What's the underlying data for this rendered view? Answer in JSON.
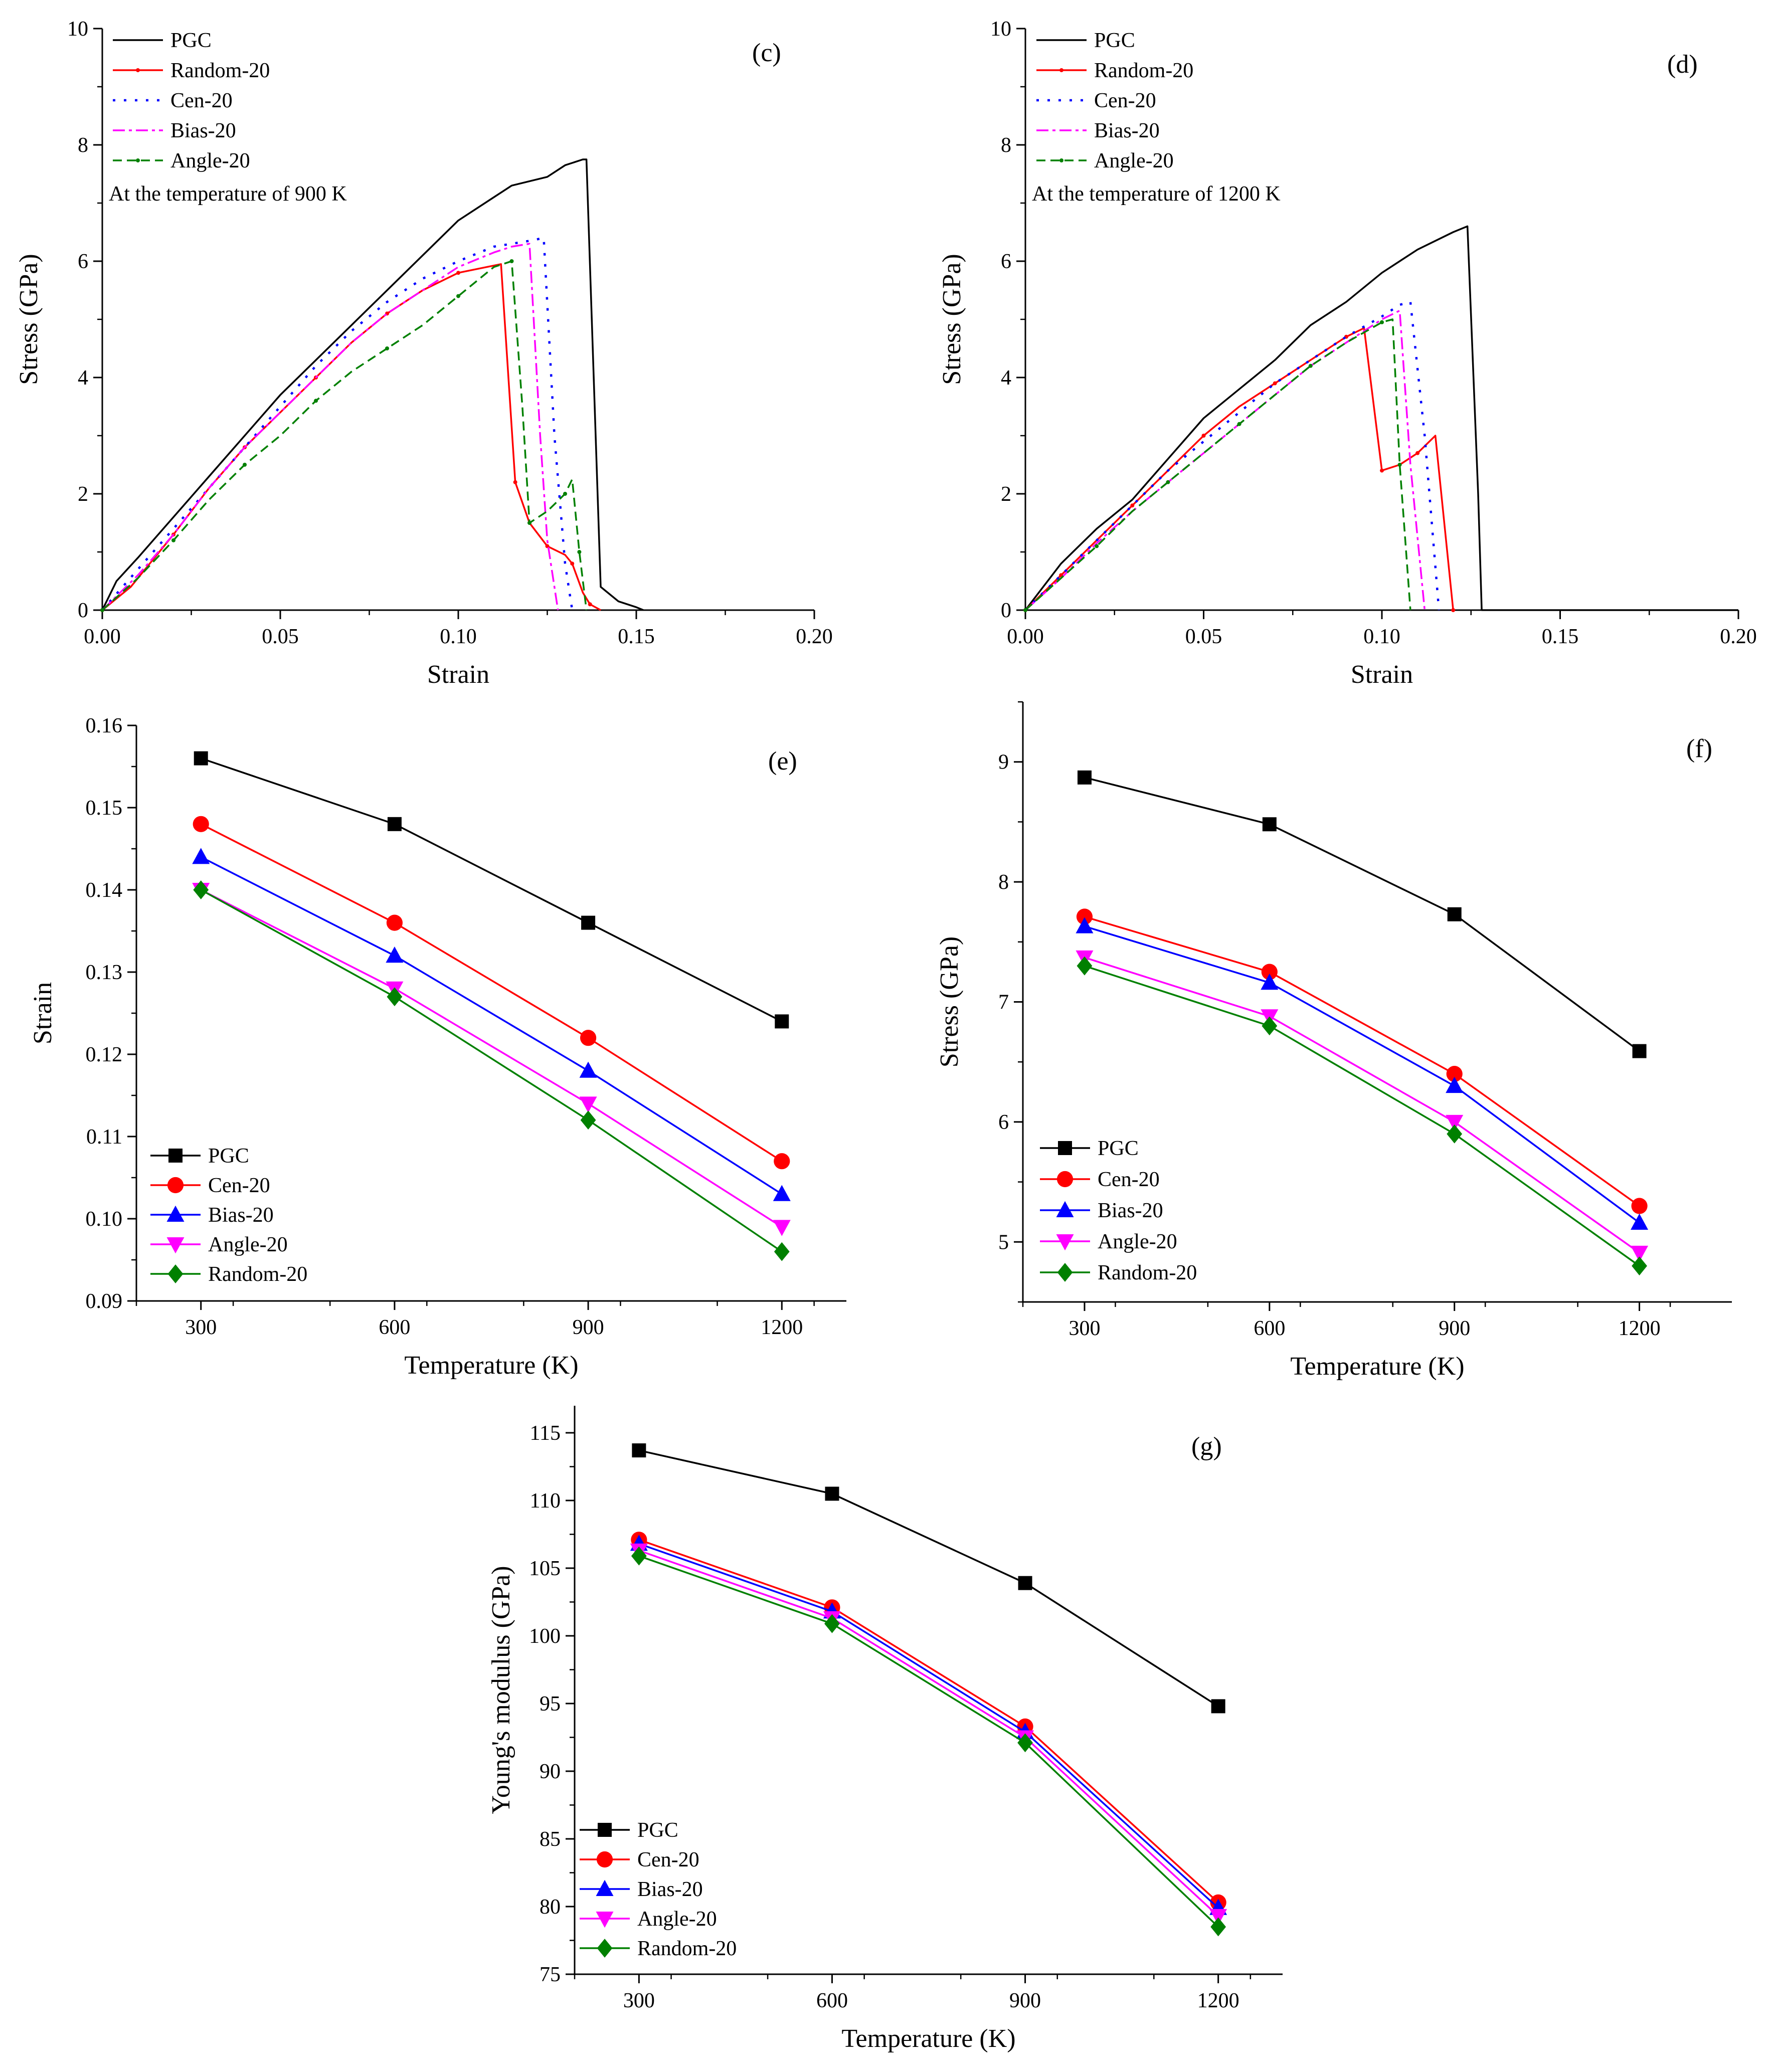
{
  "chart_data": [
    {
      "id": "c",
      "type": "line",
      "panel_label": "(c)",
      "annotation": "At the temperature of 900 K",
      "xlabel": "Strain",
      "ylabel": "Stress (GPa)",
      "xlim": [
        0,
        0.2
      ],
      "ylim": [
        0,
        10
      ],
      "xticks": [
        0,
        0.05,
        0.1,
        0.15,
        0.2
      ],
      "xtick_labels": [
        "0.00",
        "0.05",
        "0.10",
        "0.15",
        "0.20"
      ],
      "yticks": [
        0,
        2,
        4,
        6,
        8,
        10
      ],
      "ytick_labels": [
        "0",
        "2",
        "4",
        "6",
        "8",
        "10"
      ],
      "legend_position": "top-left",
      "series": [
        {
          "name": "PGC",
          "color": "#000000",
          "dash": "solid",
          "marker": "none",
          "x": [
            0,
            0.004,
            0.01,
            0.02,
            0.03,
            0.04,
            0.05,
            0.06,
            0.07,
            0.08,
            0.09,
            0.1,
            0.11,
            0.115,
            0.125,
            0.13,
            0.135,
            0.136,
            0.14,
            0.145,
            0.15,
            0.152
          ],
          "y": [
            0,
            0.5,
            0.9,
            1.6,
            2.3,
            3.0,
            3.7,
            4.3,
            4.9,
            5.5,
            6.1,
            6.7,
            7.1,
            7.3,
            7.45,
            7.65,
            7.75,
            7.75,
            0.4,
            0.15,
            0.05,
            0
          ]
        },
        {
          "name": "Random-20",
          "color": "#ff0000",
          "dash": "solid",
          "marker": "dot",
          "x": [
            0,
            0.008,
            0.02,
            0.03,
            0.04,
            0.05,
            0.06,
            0.07,
            0.08,
            0.09,
            0.1,
            0.112,
            0.116,
            0.12,
            0.125,
            0.13,
            0.132,
            0.135,
            0.137,
            0.14
          ],
          "y": [
            0,
            0.4,
            1.3,
            2.1,
            2.8,
            3.4,
            4.0,
            4.6,
            5.1,
            5.5,
            5.8,
            5.95,
            2.2,
            1.5,
            1.1,
            0.95,
            0.8,
            0.3,
            0.1,
            0
          ]
        },
        {
          "name": "Cen-20",
          "color": "#0000ff",
          "dash": "dot",
          "marker": "none",
          "x": [
            0,
            0.01,
            0.02,
            0.03,
            0.04,
            0.05,
            0.06,
            0.07,
            0.08,
            0.09,
            0.1,
            0.11,
            0.12,
            0.124,
            0.127,
            0.13,
            0.132
          ],
          "y": [
            0,
            0.7,
            1.4,
            2.1,
            2.8,
            3.5,
            4.2,
            4.8,
            5.3,
            5.7,
            6.0,
            6.25,
            6.35,
            6.4,
            3.0,
            0.8,
            0
          ]
        },
        {
          "name": "Bias-20",
          "color": "#ff00ff",
          "dash": "dashdot",
          "marker": "none",
          "x": [
            0,
            0.01,
            0.02,
            0.03,
            0.04,
            0.05,
            0.06,
            0.07,
            0.08,
            0.09,
            0.1,
            0.11,
            0.115,
            0.12,
            0.123,
            0.125,
            0.128
          ],
          "y": [
            0,
            0.6,
            1.3,
            2.1,
            2.8,
            3.4,
            4.0,
            4.6,
            5.1,
            5.5,
            5.9,
            6.15,
            6.25,
            6.3,
            3.0,
            1.2,
            0
          ]
        },
        {
          "name": "Angle-20",
          "color": "#008000",
          "dash": "dash",
          "marker": "dot",
          "x": [
            0,
            0.01,
            0.02,
            0.03,
            0.04,
            0.05,
            0.06,
            0.07,
            0.08,
            0.09,
            0.1,
            0.11,
            0.115,
            0.118,
            0.12,
            0.125,
            0.13,
            0.132,
            0.134,
            0.136
          ],
          "y": [
            0,
            0.55,
            1.2,
            1.9,
            2.5,
            3.0,
            3.6,
            4.1,
            4.5,
            4.9,
            5.4,
            5.9,
            6.0,
            3.5,
            1.5,
            1.7,
            2.0,
            2.25,
            1.0,
            0
          ]
        }
      ]
    },
    {
      "id": "d",
      "type": "line",
      "panel_label": "(d)",
      "annotation": "At the temperature of 1200 K",
      "xlabel": "Strain",
      "ylabel": "Stress (GPa)",
      "xlim": [
        0,
        0.2
      ],
      "ylim": [
        0,
        10
      ],
      "xticks": [
        0,
        0.05,
        0.1,
        0.15,
        0.2
      ],
      "xtick_labels": [
        "0.00",
        "0.05",
        "0.10",
        "0.15",
        "0.20"
      ],
      "yticks": [
        0,
        2,
        4,
        6,
        8,
        10
      ],
      "ytick_labels": [
        "0",
        "2",
        "4",
        "6",
        "8",
        "10"
      ],
      "legend_position": "top-left",
      "series": [
        {
          "name": "PGC",
          "color": "#000000",
          "dash": "solid",
          "marker": "none",
          "x": [
            0,
            0.005,
            0.01,
            0.02,
            0.03,
            0.04,
            0.05,
            0.06,
            0.07,
            0.08,
            0.09,
            0.1,
            0.11,
            0.12,
            0.124,
            0.127,
            0.128,
            0.13,
            0.2
          ],
          "y": [
            0,
            0.4,
            0.8,
            1.4,
            1.9,
            2.6,
            3.3,
            3.8,
            4.3,
            4.9,
            5.3,
            5.8,
            6.2,
            6.5,
            6.6,
            2.0,
            0,
            0,
            0
          ]
        },
        {
          "name": "Random-20",
          "color": "#ff0000",
          "dash": "solid",
          "marker": "dot",
          "x": [
            0,
            0.005,
            0.01,
            0.02,
            0.03,
            0.04,
            0.05,
            0.06,
            0.07,
            0.08,
            0.09,
            0.095,
            0.1,
            0.105,
            0.11,
            0.115,
            0.12
          ],
          "y": [
            0,
            0.3,
            0.6,
            1.2,
            1.8,
            2.4,
            3.0,
            3.5,
            3.9,
            4.3,
            4.7,
            4.85,
            2.4,
            2.5,
            2.7,
            3.0,
            0
          ]
        },
        {
          "name": "Cen-20",
          "color": "#0000ff",
          "dash": "dot",
          "marker": "none",
          "x": [
            0,
            0.01,
            0.02,
            0.03,
            0.04,
            0.05,
            0.06,
            0.07,
            0.08,
            0.09,
            0.1,
            0.105,
            0.108,
            0.112,
            0.116
          ],
          "y": [
            0,
            0.6,
            1.2,
            1.8,
            2.4,
            2.9,
            3.4,
            3.9,
            4.3,
            4.7,
            5.05,
            5.25,
            5.3,
            3.0,
            0
          ]
        },
        {
          "name": "Bias-20",
          "color": "#ff00ff",
          "dash": "dashdot",
          "marker": "none",
          "x": [
            0,
            0.01,
            0.02,
            0.03,
            0.04,
            0.05,
            0.06,
            0.07,
            0.08,
            0.09,
            0.1,
            0.105,
            0.108,
            0.112
          ],
          "y": [
            0,
            0.55,
            1.15,
            1.7,
            2.2,
            2.7,
            3.2,
            3.7,
            4.2,
            4.6,
            5.0,
            5.15,
            2.5,
            0
          ]
        },
        {
          "name": "Angle-20",
          "color": "#008000",
          "dash": "dash",
          "marker": "dot",
          "x": [
            0,
            0.01,
            0.02,
            0.03,
            0.04,
            0.05,
            0.06,
            0.07,
            0.08,
            0.09,
            0.1,
            0.103,
            0.105,
            0.108
          ],
          "y": [
            0,
            0.55,
            1.1,
            1.7,
            2.2,
            2.7,
            3.2,
            3.7,
            4.2,
            4.6,
            4.95,
            5.0,
            2.5,
            0
          ]
        }
      ]
    },
    {
      "id": "e",
      "type": "line",
      "panel_label": "(e)",
      "xlabel": "Temperature (K)",
      "ylabel": "Strain",
      "xlim": [
        200,
        1300
      ],
      "ylim": [
        0.09,
        0.16
      ],
      "xticks": [
        300,
        600,
        900,
        1200
      ],
      "xtick_labels": [
        "300",
        "600",
        "900",
        "1200"
      ],
      "yticks": [
        0.09,
        0.1,
        0.11,
        0.12,
        0.13,
        0.14,
        0.15,
        0.16
      ],
      "ytick_labels": [
        "0.09",
        "0.10",
        "0.11",
        "0.12",
        "0.13",
        "0.14",
        "0.15",
        "0.16"
      ],
      "legend_position": "bottom-left",
      "x": [
        300,
        600,
        900,
        1200
      ],
      "series": [
        {
          "name": "PGC",
          "color": "#000000",
          "marker": "square",
          "values": [
            0.156,
            0.148,
            0.136,
            0.124
          ]
        },
        {
          "name": "Cen-20",
          "color": "#ff0000",
          "marker": "circle",
          "values": [
            0.148,
            0.136,
            0.122,
            0.107
          ]
        },
        {
          "name": "Bias-20",
          "color": "#0000ff",
          "marker": "triangle-up",
          "values": [
            0.144,
            0.132,
            0.118,
            0.103
          ]
        },
        {
          "name": "Angle-20",
          "color": "#ff00ff",
          "marker": "triangle-down",
          "values": [
            0.14,
            0.128,
            0.114,
            0.099
          ]
        },
        {
          "name": "Random-20",
          "color": "#008000",
          "marker": "diamond",
          "values": [
            0.14,
            0.127,
            0.112,
            0.096
          ]
        }
      ]
    },
    {
      "id": "f",
      "type": "line",
      "panel_label": "(f)",
      "xlabel": "Temperature (K)",
      "ylabel": "Stress (GPa)",
      "xlim": [
        200,
        1350
      ],
      "ylim": [
        4.5,
        9.5
      ],
      "xticks": [
        300,
        600,
        900,
        1200
      ],
      "xtick_labels": [
        "300",
        "600",
        "900",
        "1200"
      ],
      "yticks": [
        5,
        6,
        7,
        8,
        9
      ],
      "ytick_labels": [
        "5",
        "6",
        "7",
        "8",
        "9"
      ],
      "legend_position": "bottom-left",
      "x": [
        300,
        600,
        900,
        1200
      ],
      "series": [
        {
          "name": "PGC",
          "color": "#000000",
          "marker": "square",
          "values": [
            8.87,
            8.48,
            7.73,
            6.59
          ]
        },
        {
          "name": "Cen-20",
          "color": "#ff0000",
          "marker": "circle",
          "values": [
            7.71,
            7.25,
            6.4,
            5.3
          ]
        },
        {
          "name": "Bias-20",
          "color": "#0000ff",
          "marker": "triangle-up",
          "values": [
            7.63,
            7.16,
            6.3,
            5.16
          ]
        },
        {
          "name": "Angle-20",
          "color": "#ff00ff",
          "marker": "triangle-down",
          "values": [
            7.37,
            6.88,
            6.0,
            4.91
          ]
        },
        {
          "name": "Random-20",
          "color": "#008000",
          "marker": "diamond",
          "values": [
            7.3,
            6.8,
            5.9,
            4.8
          ]
        }
      ]
    },
    {
      "id": "g",
      "type": "line",
      "panel_label": "(g)",
      "xlabel": "Temperature (K)",
      "ylabel": "Young's modulus (GPa)",
      "xlim": [
        200,
        1300
      ],
      "ylim": [
        75,
        117
      ],
      "xticks": [
        300,
        600,
        900,
        1200
      ],
      "xtick_labels": [
        "300",
        "600",
        "900",
        "1200"
      ],
      "yticks": [
        75,
        80,
        85,
        90,
        95,
        100,
        105,
        110,
        115
      ],
      "ytick_labels": [
        "75",
        "80",
        "85",
        "90",
        "95",
        "100",
        "105",
        "110",
        "115"
      ],
      "legend_position": "bottom-left",
      "x": [
        300,
        600,
        900,
        1200
      ],
      "series": [
        {
          "name": "PGC",
          "color": "#000000",
          "marker": "square",
          "values": [
            113.7,
            110.5,
            103.9,
            94.8
          ]
        },
        {
          "name": "Cen-20",
          "color": "#ff0000",
          "marker": "circle",
          "values": [
            107.1,
            102.1,
            93.3,
            80.3
          ]
        },
        {
          "name": "Bias-20",
          "color": "#0000ff",
          "marker": "triangle-up",
          "values": [
            106.8,
            101.8,
            92.9,
            79.9
          ]
        },
        {
          "name": "Angle-20",
          "color": "#ff00ff",
          "marker": "triangle-down",
          "values": [
            106.3,
            101.3,
            92.5,
            79.3
          ]
        },
        {
          "name": "Random-20",
          "color": "#008000",
          "marker": "diamond",
          "values": [
            105.9,
            100.9,
            92.1,
            78.5
          ]
        }
      ]
    }
  ]
}
